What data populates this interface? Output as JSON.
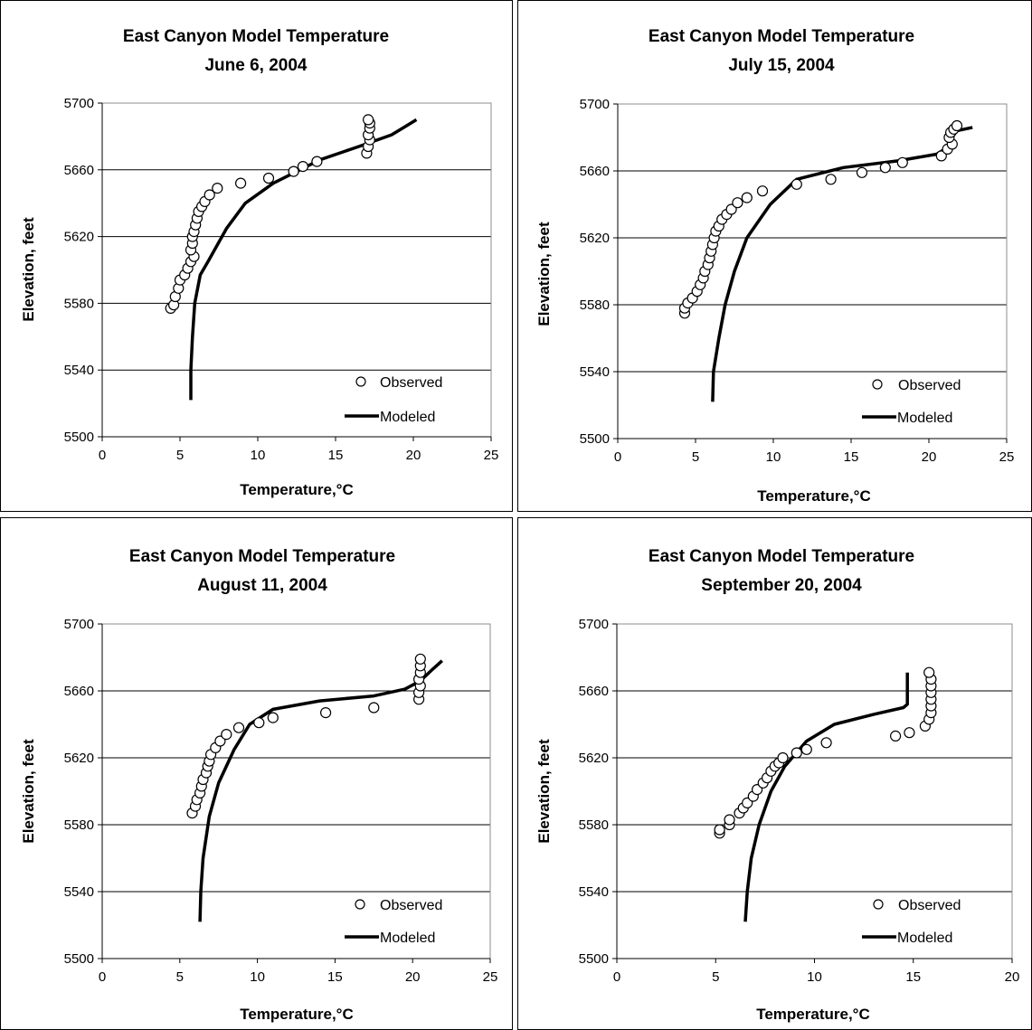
{
  "chart_data": [
    {
      "type": "scatter",
      "title": "East Canyon Model Temperature",
      "subtitle": "June 6, 2004",
      "xlabel": "Temperature,°C",
      "ylabel": "Elevation, feet",
      "xlim": [
        0,
        25
      ],
      "ylim": [
        5500,
        5700
      ],
      "xticks": [
        "0",
        "5",
        "10",
        "15",
        "20",
        "25"
      ],
      "yticks": [
        "5500",
        "5540",
        "5580",
        "5620",
        "5660",
        "5700"
      ],
      "grid": "horizontal",
      "legend": "bottom-right",
      "series": [
        {
          "name": "Observed",
          "kind": "markers",
          "points": [
            [
              4.4,
              5577
            ],
            [
              4.6,
              5579
            ],
            [
              4.7,
              5584
            ],
            [
              4.9,
              5589
            ],
            [
              5.0,
              5594
            ],
            [
              5.3,
              5597
            ],
            [
              5.5,
              5601
            ],
            [
              5.7,
              5605
            ],
            [
              5.9,
              5608
            ],
            [
              5.7,
              5612
            ],
            [
              5.8,
              5616
            ],
            [
              5.8,
              5620
            ],
            [
              5.9,
              5623
            ],
            [
              6.0,
              5627
            ],
            [
              6.1,
              5631
            ],
            [
              6.2,
              5635
            ],
            [
              6.4,
              5638
            ],
            [
              6.6,
              5641
            ],
            [
              6.9,
              5645
            ],
            [
              7.4,
              5649
            ],
            [
              8.9,
              5652
            ],
            [
              10.7,
              5655
            ],
            [
              12.3,
              5659
            ],
            [
              12.9,
              5662
            ],
            [
              13.8,
              5665
            ],
            [
              17.0,
              5670
            ],
            [
              17.1,
              5674
            ],
            [
              17.2,
              5678
            ],
            [
              17.1,
              5681
            ],
            [
              17.2,
              5685
            ],
            [
              17.2,
              5688
            ],
            [
              17.1,
              5690
            ]
          ]
        },
        {
          "name": "Modeled",
          "kind": "line",
          "points": [
            [
              5.7,
              5522
            ],
            [
              5.7,
              5540
            ],
            [
              5.8,
              5560
            ],
            [
              5.95,
              5580
            ],
            [
              6.3,
              5597
            ],
            [
              6.8,
              5605
            ],
            [
              8.0,
              5625
            ],
            [
              9.2,
              5640
            ],
            [
              11.0,
              5652
            ],
            [
              14.0,
              5666
            ],
            [
              16.5,
              5674
            ],
            [
              18.6,
              5681
            ],
            [
              19.5,
              5686
            ],
            [
              20.2,
              5690
            ]
          ]
        }
      ]
    },
    {
      "type": "scatter",
      "title": "East Canyon Model Temperature",
      "subtitle": "July 15, 2004",
      "xlabel": "Temperature,°C",
      "ylabel": "Elevation, feet",
      "xlim": [
        0,
        25
      ],
      "ylim": [
        5500,
        5700
      ],
      "xticks": [
        "0",
        "5",
        "10",
        "15",
        "20",
        "25"
      ],
      "yticks": [
        "5500",
        "5540",
        "5580",
        "5620",
        "5660",
        "5700"
      ],
      "grid": "horizontal",
      "legend": "bottom-right",
      "series": [
        {
          "name": "Observed",
          "kind": "markers",
          "points": [
            [
              4.3,
              5575
            ],
            [
              4.3,
              5578
            ],
            [
              4.5,
              5581
            ],
            [
              4.8,
              5584
            ],
            [
              5.1,
              5588
            ],
            [
              5.3,
              5592
            ],
            [
              5.5,
              5596
            ],
            [
              5.6,
              5600
            ],
            [
              5.8,
              5604
            ],
            [
              5.9,
              5608
            ],
            [
              6.0,
              5612
            ],
            [
              6.1,
              5616
            ],
            [
              6.2,
              5620
            ],
            [
              6.3,
              5624
            ],
            [
              6.5,
              5627
            ],
            [
              6.7,
              5631
            ],
            [
              7.0,
              5634
            ],
            [
              7.3,
              5637
            ],
            [
              7.7,
              5641
            ],
            [
              8.3,
              5644
            ],
            [
              9.3,
              5648
            ],
            [
              11.5,
              5652
            ],
            [
              13.7,
              5655
            ],
            [
              15.7,
              5659
            ],
            [
              17.2,
              5662
            ],
            [
              18.3,
              5665
            ],
            [
              20.8,
              5669
            ],
            [
              21.2,
              5673
            ],
            [
              21.5,
              5676
            ],
            [
              21.3,
              5680
            ],
            [
              21.4,
              5683
            ],
            [
              21.6,
              5685
            ],
            [
              21.8,
              5687
            ]
          ]
        },
        {
          "name": "Modeled",
          "kind": "line",
          "points": [
            [
              6.1,
              5522
            ],
            [
              6.15,
              5540
            ],
            [
              6.5,
              5560
            ],
            [
              6.9,
              5580
            ],
            [
              7.5,
              5600
            ],
            [
              8.3,
              5620
            ],
            [
              9.8,
              5640
            ],
            [
              11.5,
              5655
            ],
            [
              14.5,
              5662
            ],
            [
              18.0,
              5666
            ],
            [
              20.5,
              5670
            ],
            [
              21.2,
              5674
            ],
            [
              21.4,
              5679
            ],
            [
              21.8,
              5684
            ],
            [
              22.8,
              5686
            ]
          ]
        }
      ]
    },
    {
      "type": "scatter",
      "title": "East Canyon Model Temperature",
      "subtitle": "August 11, 2004",
      "xlabel": "Temperature,°C",
      "ylabel": "Elevation, feet",
      "xlim": [
        0,
        25
      ],
      "ylim": [
        5500,
        5700
      ],
      "xticks": [
        "0",
        "5",
        "10",
        "15",
        "20",
        "25"
      ],
      "yticks": [
        "5500",
        "5540",
        "5580",
        "5620",
        "5660",
        "5700"
      ],
      "grid": "horizontal",
      "legend": "bottom-right",
      "series": [
        {
          "name": "Observed",
          "kind": "markers",
          "points": [
            [
              5.8,
              5587
            ],
            [
              6.0,
              5591
            ],
            [
              6.1,
              5595
            ],
            [
              6.3,
              5599
            ],
            [
              6.4,
              5603
            ],
            [
              6.5,
              5607
            ],
            [
              6.7,
              5611
            ],
            [
              6.8,
              5615
            ],
            [
              6.9,
              5618
            ],
            [
              7.0,
              5622
            ],
            [
              7.3,
              5626
            ],
            [
              7.6,
              5630
            ],
            [
              8.0,
              5634
            ],
            [
              8.8,
              5638
            ],
            [
              10.1,
              5641
            ],
            [
              11.0,
              5644
            ],
            [
              14.4,
              5647
            ],
            [
              17.5,
              5650
            ],
            [
              20.4,
              5655
            ],
            [
              20.4,
              5659
            ],
            [
              20.5,
              5663
            ],
            [
              20.4,
              5667
            ],
            [
              20.5,
              5671
            ],
            [
              20.5,
              5675
            ],
            [
              20.5,
              5679
            ]
          ]
        },
        {
          "name": "Modeled",
          "kind": "line",
          "points": [
            [
              6.3,
              5522
            ],
            [
              6.35,
              5540
            ],
            [
              6.5,
              5560
            ],
            [
              6.9,
              5585
            ],
            [
              7.5,
              5605
            ],
            [
              8.5,
              5625
            ],
            [
              9.5,
              5640
            ],
            [
              11.0,
              5649
            ],
            [
              14.0,
              5654
            ],
            [
              17.5,
              5657
            ],
            [
              19.5,
              5661
            ],
            [
              20.5,
              5666
            ],
            [
              21.3,
              5673
            ],
            [
              21.9,
              5678
            ]
          ]
        }
      ]
    },
    {
      "type": "scatter",
      "title": "East Canyon Model Temperature",
      "subtitle": "September 20, 2004",
      "xlabel": "Temperature,°C",
      "ylabel": "Elevation, feet",
      "xlim": [
        0,
        20
      ],
      "ylim": [
        5500,
        5700
      ],
      "xticks": [
        "0",
        "5",
        "10",
        "15",
        "20"
      ],
      "yticks": [
        "5500",
        "5540",
        "5580",
        "5620",
        "5660",
        "5700"
      ],
      "grid": "horizontal",
      "legend": "bottom-right",
      "series": [
        {
          "name": "Observed",
          "kind": "markers",
          "points": [
            [
              5.2,
              5575
            ],
            [
              5.2,
              5577
            ],
            [
              5.7,
              5580
            ],
            [
              5.7,
              5583
            ],
            [
              6.2,
              5587
            ],
            [
              6.4,
              5590
            ],
            [
              6.6,
              5593
            ],
            [
              6.9,
              5597
            ],
            [
              7.1,
              5601
            ],
            [
              7.4,
              5605
            ],
            [
              7.6,
              5608
            ],
            [
              7.8,
              5612
            ],
            [
              8.0,
              5615
            ],
            [
              8.2,
              5617
            ],
            [
              8.4,
              5620
            ],
            [
              9.1,
              5623
            ],
            [
              9.6,
              5625
            ],
            [
              10.6,
              5629
            ],
            [
              14.1,
              5633
            ],
            [
              14.8,
              5635
            ],
            [
              15.6,
              5639
            ],
            [
              15.8,
              5643
            ],
            [
              15.9,
              5647
            ],
            [
              15.9,
              5651
            ],
            [
              15.9,
              5655
            ],
            [
              15.9,
              5659
            ],
            [
              15.9,
              5663
            ],
            [
              15.9,
              5667
            ],
            [
              15.8,
              5671
            ]
          ]
        },
        {
          "name": "Modeled",
          "kind": "line",
          "points": [
            [
              6.5,
              5522
            ],
            [
              6.6,
              5540
            ],
            [
              6.8,
              5560
            ],
            [
              7.2,
              5580
            ],
            [
              7.8,
              5600
            ],
            [
              8.5,
              5615
            ],
            [
              9.6,
              5630
            ],
            [
              11.0,
              5640
            ],
            [
              13.0,
              5646
            ],
            [
              14.5,
              5650
            ],
            [
              14.7,
              5652
            ],
            [
              14.7,
              5671
            ]
          ]
        }
      ]
    }
  ]
}
